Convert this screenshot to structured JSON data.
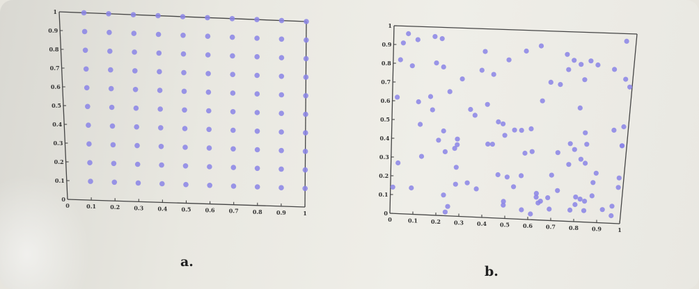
{
  "chart_data": [
    {
      "type": "scatter",
      "label": "a.",
      "pattern": "regular-grid",
      "xlim": [
        0,
        1
      ],
      "ylim": [
        0,
        1
      ],
      "xticks": [
        "0",
        "0.1",
        "0.2",
        "0.3",
        "0.4",
        "0.5",
        "0.6",
        "0.7",
        "0.8",
        "0.9",
        "1"
      ],
      "yticks": [
        "0",
        "0.1",
        "0.2",
        "0.3",
        "0.4",
        "0.5",
        "0.6",
        "0.7",
        "0.8",
        "0.9",
        "1"
      ],
      "x": [
        0.1,
        0.2,
        0.3,
        0.4,
        0.5,
        0.6,
        0.7,
        0.8,
        0.9,
        1.0,
        0.1,
        0.2,
        0.3,
        0.4,
        0.5,
        0.6,
        0.7,
        0.8,
        0.9,
        1.0,
        0.1,
        0.2,
        0.3,
        0.4,
        0.5,
        0.6,
        0.7,
        0.8,
        0.9,
        1.0,
        0.1,
        0.2,
        0.3,
        0.4,
        0.5,
        0.6,
        0.7,
        0.8,
        0.9,
        1.0,
        0.1,
        0.2,
        0.3,
        0.4,
        0.5,
        0.6,
        0.7,
        0.8,
        0.9,
        1.0,
        0.1,
        0.2,
        0.3,
        0.4,
        0.5,
        0.6,
        0.7,
        0.8,
        0.9,
        1.0,
        0.1,
        0.2,
        0.3,
        0.4,
        0.5,
        0.6,
        0.7,
        0.8,
        0.9,
        1.0,
        0.1,
        0.2,
        0.3,
        0.4,
        0.5,
        0.6,
        0.7,
        0.8,
        0.9,
        1.0,
        0.1,
        0.2,
        0.3,
        0.4,
        0.5,
        0.6,
        0.7,
        0.8,
        0.9,
        1.0,
        0.1,
        0.2,
        0.3,
        0.4,
        0.5,
        0.6,
        0.7,
        0.8,
        0.9,
        1.0
      ],
      "y": [
        0.1,
        0.1,
        0.1,
        0.1,
        0.1,
        0.1,
        0.1,
        0.1,
        0.1,
        0.1,
        0.2,
        0.2,
        0.2,
        0.2,
        0.2,
        0.2,
        0.2,
        0.2,
        0.2,
        0.2,
        0.3,
        0.3,
        0.3,
        0.3,
        0.3,
        0.3,
        0.3,
        0.3,
        0.3,
        0.3,
        0.4,
        0.4,
        0.4,
        0.4,
        0.4,
        0.4,
        0.4,
        0.4,
        0.4,
        0.4,
        0.5,
        0.5,
        0.5,
        0.5,
        0.5,
        0.5,
        0.5,
        0.5,
        0.5,
        0.5,
        0.6,
        0.6,
        0.6,
        0.6,
        0.6,
        0.6,
        0.6,
        0.6,
        0.6,
        0.6,
        0.7,
        0.7,
        0.7,
        0.7,
        0.7,
        0.7,
        0.7,
        0.7,
        0.7,
        0.7,
        0.8,
        0.8,
        0.8,
        0.8,
        0.8,
        0.8,
        0.8,
        0.8,
        0.8,
        0.8,
        0.9,
        0.9,
        0.9,
        0.9,
        0.9,
        0.9,
        0.9,
        0.9,
        0.9,
        0.9,
        1.0,
        1.0,
        1.0,
        1.0,
        1.0,
        1.0,
        1.0,
        1.0,
        1.0,
        1.0
      ],
      "point_color": "#8a84e6",
      "grid": false
    },
    {
      "type": "scatter",
      "label": "b.",
      "pattern": "random",
      "xlim": [
        0,
        1
      ],
      "ylim": [
        0,
        1
      ],
      "xticks": [
        "0",
        "0.1",
        "0.2",
        "0.3",
        "0.4",
        "0.5",
        "0.6",
        "0.7",
        "0.8",
        "0.9",
        "1"
      ],
      "yticks": [
        "0",
        "0.1",
        "0.2",
        "0.3",
        "0.4",
        "0.5",
        "0.6",
        "0.7",
        "0.8",
        "0.9",
        "1"
      ],
      "x": [
        0.06,
        0.04,
        0.1,
        0.17,
        0.2,
        0.03,
        0.08,
        0.18,
        0.21,
        0.38,
        0.55,
        0.61,
        0.72,
        0.75,
        0.78,
        0.82,
        0.85,
        0.92,
        0.96,
        0.37,
        0.42,
        0.48,
        0.8,
        0.73,
        0.02,
        0.16,
        0.24,
        0.29,
        0.66,
        0.7,
        0.99,
        0.97,
        0.11,
        0.17,
        0.33,
        0.4,
        0.45,
        0.63,
        0.79,
        0.12,
        0.2,
        0.22,
        0.28,
        0.35,
        0.47,
        0.52,
        0.55,
        0.59,
        0.82,
        0.94,
        0.98,
        0.98,
        0.28,
        0.27,
        0.41,
        0.48,
        0.57,
        0.71,
        0.78,
        0.81,
        0.83,
        0.23,
        0.13,
        0.28,
        0.03,
        0.46,
        0.56,
        0.6,
        0.69,
        0.76,
        0.83,
        0.88,
        0.98,
        0.28,
        0.33,
        0.37,
        0.5,
        0.53,
        0.63,
        0.68,
        0.87,
        0.98,
        0.01,
        0.09,
        0.23,
        0.25,
        0.72,
        0.8,
        0.82,
        0.87,
        0.49,
        0.57,
        0.65,
        0.69,
        0.78,
        0.84,
        0.92,
        0.96,
        0.24,
        0.84,
        0.96,
        0.64,
        0.61,
        0.8,
        0.98,
        0.63,
        0.76,
        0.49,
        0.43
      ],
      "y": [
        0.96,
        0.91,
        0.93,
        0.95,
        0.94,
        0.82,
        0.79,
        0.81,
        0.79,
        0.88,
        0.89,
        0.92,
        0.88,
        0.85,
        0.83,
        0.85,
        0.83,
        0.81,
        0.96,
        0.78,
        0.76,
        0.84,
        0.75,
        0.8,
        0.62,
        0.63,
        0.66,
        0.73,
        0.73,
        0.72,
        0.72,
        0.76,
        0.6,
        0.56,
        0.57,
        0.6,
        0.51,
        0.63,
        0.6,
        0.48,
        0.4,
        0.45,
        0.41,
        0.54,
        0.5,
        0.47,
        0.47,
        0.48,
        0.47,
        0.49,
        0.51,
        0.41,
        0.38,
        0.36,
        0.39,
        0.44,
        0.35,
        0.36,
        0.38,
        0.33,
        0.41,
        0.34,
        0.31,
        0.26,
        0.27,
        0.23,
        0.23,
        0.36,
        0.24,
        0.3,
        0.31,
        0.26,
        0.24,
        0.17,
        0.18,
        0.15,
        0.22,
        0.17,
        0.14,
        0.12,
        0.21,
        0.19,
        0.14,
        0.14,
        0.11,
        0.05,
        0.16,
        0.13,
        0.12,
        0.14,
        0.07,
        0.05,
        0.1,
        0.06,
        0.06,
        0.06,
        0.07,
        0.04,
        0.02,
        0.11,
        0.09,
        0.09,
        0.03,
        0.09,
        0.41,
        0.12,
        0.41,
        0.09,
        0.39
      ],
      "point_color": "#8a84e6",
      "grid": false
    }
  ],
  "colors": {
    "axis": "#444444",
    "background": "#ebeae4"
  }
}
